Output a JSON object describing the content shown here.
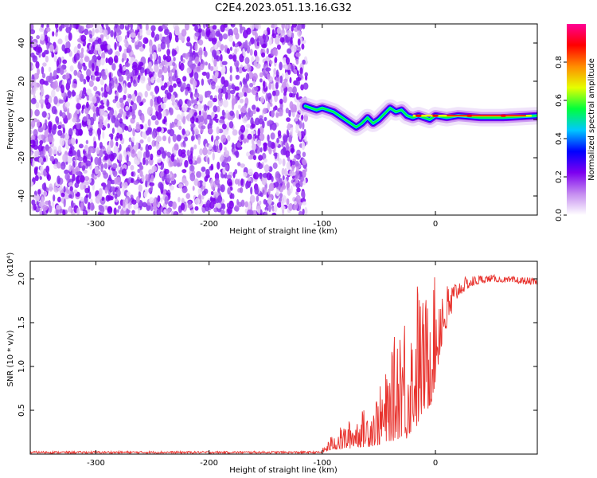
{
  "figure_title": "C2E4.2023.051.13.16.G32",
  "chart_data": [
    {
      "type": "heatmap",
      "title": "C2E4.2023.051.13.16.G32",
      "xlabel": "Height of straight line (km)",
      "ylabel": "Frequency (Hz)",
      "xlim": [
        -358,
        90
      ],
      "ylim": [
        -50,
        50
      ],
      "xticks": [
        -300,
        -200,
        -100,
        0
      ],
      "yticks": [
        -40,
        -20,
        0,
        20,
        40
      ],
      "noise_region_x": [
        -358,
        -114
      ],
      "signal_trace": {
        "x": [
          -115,
          -110,
          -105,
          -100,
          -95,
          -90,
          -85,
          -80,
          -75,
          -70,
          -65,
          -60,
          -55,
          -50,
          -45,
          -40,
          -35,
          -30,
          -25,
          -20,
          -15,
          -10,
          -5,
          0,
          10,
          20,
          40,
          60,
          90
        ],
        "y": [
          7,
          6,
          5,
          6,
          5,
          4,
          2,
          0,
          -2,
          -4,
          -2,
          1,
          -2,
          0,
          3,
          6,
          4,
          5,
          2,
          1,
          2,
          1,
          0,
          2,
          1,
          2,
          1,
          1,
          2
        ]
      },
      "colorbar": {
        "label": "Normalized spectral amplitude",
        "range": [
          0.0,
          1.0
        ],
        "ticks": [
          "0.0",
          "0.2",
          "0.4",
          "0.6",
          "0.8"
        ],
        "colors": [
          "#ffffff",
          "#c58cf0",
          "#7d00f0",
          "#0000ff",
          "#00c8ff",
          "#00ff3c",
          "#e6ff00",
          "#ff8c00",
          "#ff0000",
          "#ff0096"
        ]
      }
    },
    {
      "type": "line",
      "title": "",
      "xlabel": "Height of straight line (km)",
      "ylabel": "SNR (10 * v/v)",
      "y_multiplier_label": "(x10⁴)",
      "xlim": [
        -358,
        90
      ],
      "ylim": [
        0,
        2.2
      ],
      "xticks": [
        -300,
        -200,
        -100,
        0
      ],
      "yticks": [
        "0.5",
        "1.0",
        "1.5",
        "2.0"
      ],
      "color": "#e8322d",
      "baseline": 0.02,
      "envelope": {
        "x": [
          -358,
          -120,
          -100,
          -90,
          -80,
          -70,
          -60,
          -50,
          -45,
          -40,
          -35,
          -30,
          -25,
          -20,
          -15,
          -10,
          -5,
          0,
          5,
          10,
          15,
          20,
          30,
          40,
          50,
          60,
          70,
          80,
          90
        ],
        "low": [
          0.0,
          0.0,
          0.01,
          0.05,
          0.05,
          0.08,
          0.08,
          0.1,
          0.1,
          0.15,
          0.15,
          0.2,
          0.15,
          0.3,
          0.3,
          0.5,
          0.5,
          0.8,
          1.2,
          1.4,
          1.6,
          1.8,
          1.9,
          1.95,
          1.97,
          1.96,
          1.95,
          1.94,
          1.93
        ],
        "high": [
          0.05,
          0.05,
          0.06,
          0.25,
          0.35,
          0.45,
          0.55,
          0.75,
          0.9,
          1.05,
          1.45,
          1.9,
          1.6,
          1.6,
          2.15,
          1.7,
          2.15,
          2.0,
          2.15,
          1.95,
          2.0,
          2.0,
          2.03,
          2.05,
          2.05,
          2.02,
          2.03,
          2.02,
          2.0
        ]
      }
    }
  ]
}
